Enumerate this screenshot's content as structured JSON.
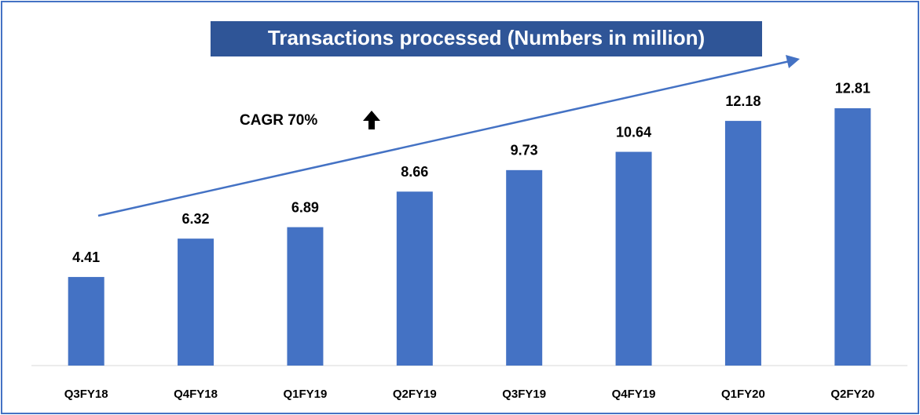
{
  "chart_data": {
    "type": "bar",
    "title": "Transactions processed (Numbers in million)",
    "annotation": "CAGR 70%",
    "categories": [
      "Q3FY18",
      "Q4FY18",
      "Q1FY19",
      "Q2FY19",
      "Q3FY19",
      "Q4FY19",
      "Q1FY20",
      "Q2FY20"
    ],
    "values": [
      4.41,
      6.32,
      6.89,
      8.66,
      9.73,
      10.64,
      12.18,
      12.81
    ],
    "color": "#4472c4",
    "ylim": [
      0,
      14
    ]
  }
}
